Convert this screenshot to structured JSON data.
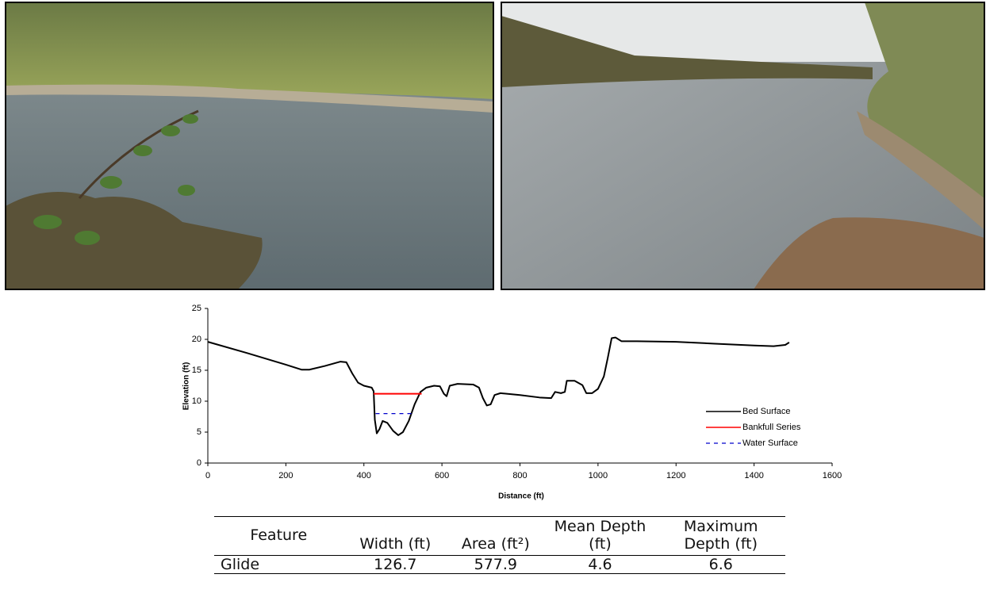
{
  "chart_data": {
    "type": "line",
    "xlabel": "Distance (ft)",
    "ylabel": "Elevation (ft)",
    "xlim": [
      0,
      1600
    ],
    "xticks": [
      0,
      200,
      400,
      600,
      800,
      1000,
      1200,
      1400,
      1600
    ],
    "ylim": [
      0,
      25
    ],
    "yticks": [
      0,
      5,
      10,
      15,
      20,
      25
    ],
    "grid": false,
    "legend": "center-right",
    "series": [
      {
        "name": "Bed Surface",
        "color": "#000000",
        "linestyle": "solid",
        "x": [
          0,
          100,
          200,
          240,
          260,
          300,
          340,
          355,
          370,
          385,
          400,
          420,
          425,
          428,
          433,
          440,
          448,
          460,
          475,
          488,
          500,
          515,
          530,
          545,
          560,
          580,
          595,
          605,
          612,
          620,
          640,
          680,
          695,
          705,
          715,
          725,
          735,
          750,
          800,
          850,
          880,
          890,
          905,
          915,
          920,
          940,
          960,
          970,
          985,
          1000,
          1015,
          1025,
          1035,
          1045,
          1060,
          1100,
          1200,
          1300,
          1400,
          1450,
          1480,
          1490
        ],
        "values": [
          19.6,
          17.8,
          15.9,
          15.1,
          15.1,
          15.7,
          16.4,
          16.3,
          14.5,
          13.0,
          12.5,
          12.2,
          11.6,
          7.0,
          4.8,
          5.5,
          6.8,
          6.5,
          5.2,
          4.5,
          5.0,
          6.8,
          9.5,
          11.5,
          12.2,
          12.5,
          12.4,
          11.2,
          10.8,
          12.5,
          12.8,
          12.7,
          12.2,
          10.5,
          9.3,
          9.5,
          11.0,
          11.3,
          11.0,
          10.6,
          10.5,
          11.5,
          11.3,
          11.5,
          13.3,
          13.3,
          12.6,
          11.3,
          11.3,
          12.0,
          14.0,
          17.0,
          20.2,
          20.3,
          19.7,
          19.7,
          19.6,
          19.3,
          19.0,
          18.9,
          19.1,
          19.5
        ]
      },
      {
        "name": "Bankfull Series",
        "color": "#ff0000",
        "linestyle": "solid",
        "x": [
          425,
          548
        ],
        "values": [
          11.2,
          11.2
        ]
      },
      {
        "name": "Water Surface",
        "color": "#0000cc",
        "linestyle": "dashed",
        "x": [
          430,
          525
        ],
        "values": [
          8.0,
          8.0
        ]
      }
    ]
  },
  "table": {
    "header": [
      "Feature",
      "Width (ft)",
      "Area (ft²)",
      "Mean Depth (ft)",
      "Maximum Depth (ft)"
    ],
    "rows": [
      [
        "Glide",
        126.7,
        577.9,
        4.6,
        6.6
      ]
    ]
  }
}
